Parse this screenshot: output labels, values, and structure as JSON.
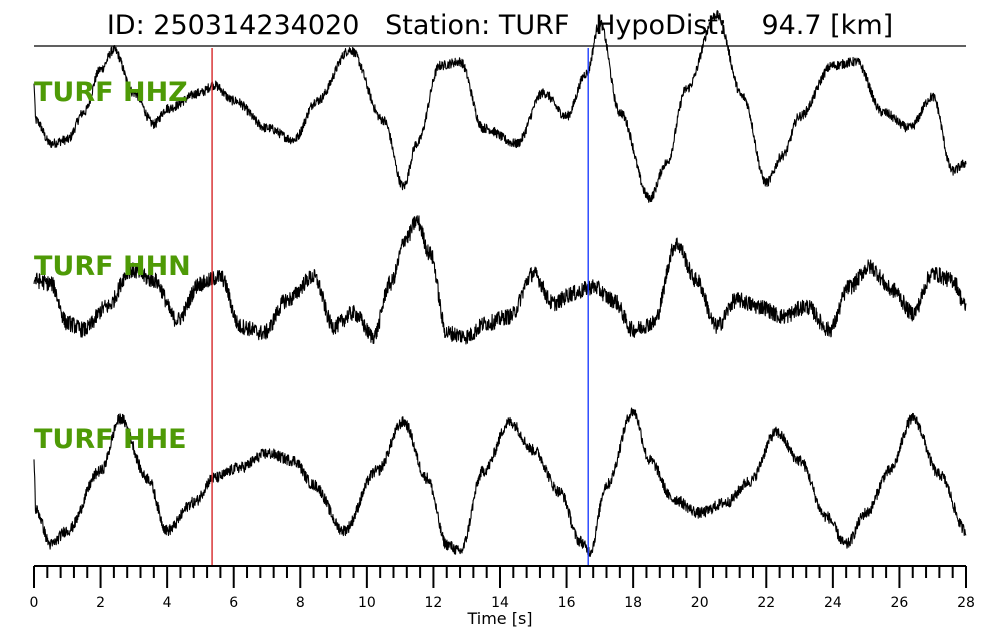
{
  "header": {
    "id_text": "ID: 250314234020",
    "station_text": "Station: TURF",
    "hypodist_text": "HypoDist:",
    "hypodist_value": "94.7 [km]"
  },
  "chart_data": {
    "type": "line",
    "title": "ID: 250314234020   Station: TURF   HypoDist:    94.7 [km]",
    "xlabel": "Time [s]",
    "ylabel": "",
    "xlim": [
      0,
      28
    ],
    "x_ticks": [
      "0",
      "2",
      "4",
      "6",
      "8",
      "10",
      "12",
      "14",
      "16",
      "18",
      "20",
      "22",
      "24",
      "26",
      "28"
    ],
    "minor_tick_step": 0.4,
    "grid": false,
    "markers": [
      {
        "time": 5.35,
        "color": "#d62728"
      },
      {
        "time": 16.65,
        "color": "#1f3fff"
      }
    ],
    "series": [
      {
        "name": "TURF HHZ",
        "color": "#000000",
        "label_color": "#4e9a06",
        "t": [
          0,
          0.05,
          0.5,
          1,
          1.5,
          2,
          2.4,
          3,
          3.6,
          4,
          5,
          5.4,
          6,
          7,
          7.8,
          8.5,
          9.5,
          10.5,
          11.1,
          11.5,
          12.2,
          12.8,
          13.5,
          14.5,
          15.3,
          16,
          16.6,
          17,
          17.6,
          18.5,
          19,
          19.6,
          20.5,
          21.3,
          22,
          22.5,
          23,
          24,
          24.7,
          25.5,
          26.3,
          27,
          27.6,
          28
        ],
        "v": [
          0.55,
          0.1,
          -0.2,
          -0.15,
          0.2,
          0.75,
          1.0,
          0.45,
          0.05,
          0.25,
          0.45,
          0.55,
          0.35,
          0.0,
          -0.15,
          0.35,
          1.0,
          0.1,
          -0.75,
          -0.2,
          0.8,
          0.85,
          0.0,
          -0.2,
          0.45,
          0.15,
          0.7,
          1.35,
          0.2,
          -0.9,
          -0.45,
          0.5,
          1.45,
          0.4,
          -0.7,
          -0.35,
          0.15,
          0.8,
          0.85,
          0.2,
          0.0,
          0.4,
          -0.55,
          -0.45
        ],
        "noise": 0.06
      },
      {
        "name": "TURF HHN",
        "color": "#000000",
        "label_color": "#4e9a06",
        "t": [
          0,
          0.5,
          1,
          1.5,
          2.2,
          2.9,
          3.6,
          4.3,
          5,
          5.6,
          6.2,
          6.9,
          7.6,
          8.4,
          9,
          9.6,
          10.2,
          10.7,
          11.2,
          11.5,
          11.9,
          12.4,
          13,
          13.6,
          14.3,
          15,
          15.6,
          16.2,
          16.8,
          17.4,
          18,
          18.6,
          19.3,
          19.9,
          20.5,
          21.1,
          21.8,
          22.5,
          23.2,
          23.9,
          24.5,
          25.1,
          25.8,
          26.4,
          27,
          27.6,
          28
        ],
        "v": [
          0.3,
          0.25,
          -0.35,
          -0.45,
          -0.1,
          0.45,
          0.3,
          -0.3,
          0.25,
          0.35,
          -0.4,
          -0.5,
          0.0,
          0.35,
          -0.4,
          -0.2,
          -0.55,
          0.25,
          0.95,
          1.2,
          0.7,
          -0.5,
          -0.55,
          -0.35,
          -0.25,
          0.4,
          -0.05,
          0.1,
          0.2,
          0.0,
          -0.45,
          -0.35,
          0.85,
          0.3,
          -0.4,
          0.0,
          -0.1,
          -0.25,
          -0.1,
          -0.45,
          0.2,
          0.5,
          0.15,
          -0.2,
          0.4,
          0.3,
          -0.1
        ],
        "noise": 0.12
      },
      {
        "name": "TURF HHE",
        "color": "#000000",
        "label_color": "#4e9a06",
        "t": [
          0,
          0.05,
          0.5,
          1,
          2,
          2.6,
          3.4,
          4,
          4.8,
          5.4,
          6.2,
          7,
          7.8,
          8.4,
          9.3,
          10.3,
          11.1,
          11.8,
          12.4,
          12.8,
          13.5,
          14.3,
          15,
          15.8,
          16.4,
          16.7,
          17.2,
          18,
          18.5,
          19.2,
          20,
          20.8,
          21.5,
          22.3,
          23,
          23.8,
          24.4,
          25,
          25.7,
          26.4,
          27.2,
          28
        ],
        "v": [
          0.25,
          -0.45,
          -0.95,
          -0.75,
          0.1,
          0.85,
          0.0,
          -0.75,
          -0.35,
          0.0,
          0.15,
          0.35,
          0.25,
          -0.1,
          -0.75,
          0.1,
          0.8,
          0.0,
          -0.95,
          -1.05,
          0.1,
          0.8,
          0.4,
          -0.2,
          -0.9,
          -1.05,
          -0.1,
          0.95,
          0.25,
          -0.3,
          -0.5,
          -0.35,
          -0.05,
          0.65,
          0.25,
          -0.55,
          -0.95,
          -0.5,
          0.1,
          0.85,
          0.05,
          -0.75
        ],
        "noise": 0.08
      }
    ]
  }
}
